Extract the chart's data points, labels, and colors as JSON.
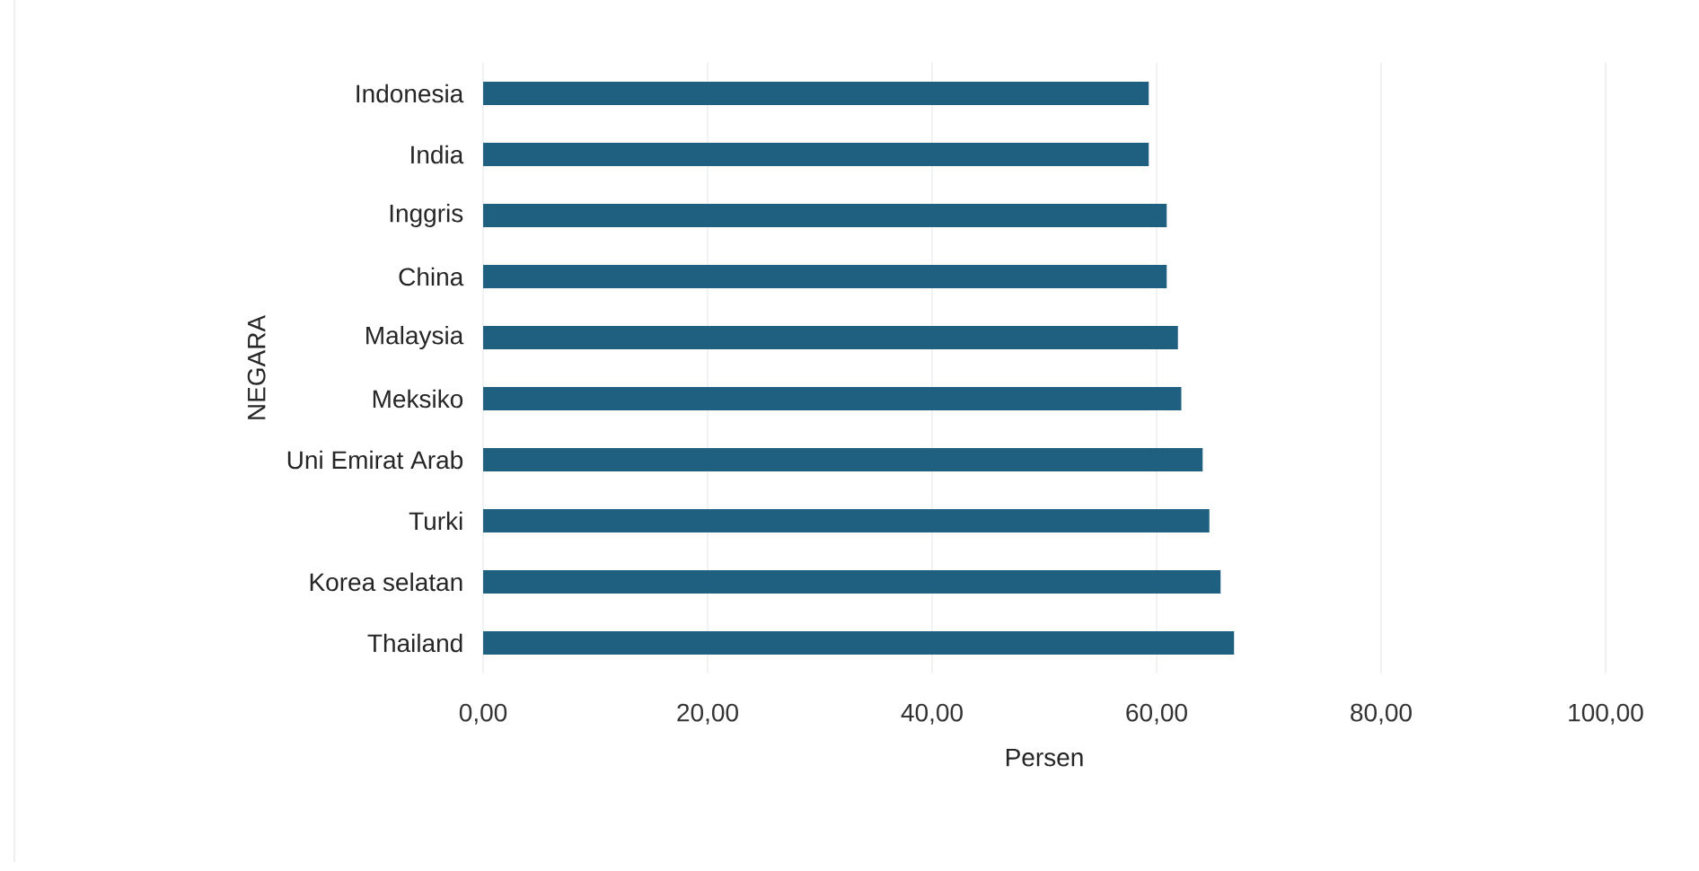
{
  "chart_data": {
    "type": "bar",
    "orientation": "horizontal",
    "xlabel": "Persen",
    "ylabel": "NEGARA",
    "categories": [
      "Indonesia",
      "India",
      "Inggris",
      "China",
      "Malaysia",
      "Meksiko",
      "Uni Emirat Arab",
      "Turki",
      "Korea selatan",
      "Thailand"
    ],
    "values": [
      59.3,
      59.3,
      60.9,
      60.9,
      61.9,
      62.2,
      64.1,
      64.7,
      65.7,
      66.9
    ],
    "color": "#1f5f7f",
    "xlim": [
      0,
      100
    ],
    "xticks": [
      {
        "value": 0,
        "label": "0,00"
      },
      {
        "value": 20,
        "label": "20,00"
      },
      {
        "value": 40,
        "label": "40,00"
      },
      {
        "value": 60,
        "label": "60,00"
      },
      {
        "value": 80,
        "label": "80,00"
      },
      {
        "value": 100,
        "label": "100,00"
      }
    ],
    "grid": "x"
  }
}
